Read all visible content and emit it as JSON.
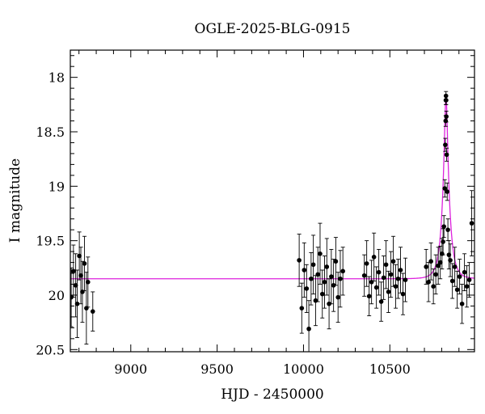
{
  "chart_data": {
    "type": "scatter",
    "title": "OGLE-2025-BLG-0915",
    "xlabel": "HJD - 2450000",
    "ylabel": "I magnitude",
    "xlim": [
      8650,
      10990
    ],
    "ylim": [
      20.52,
      17.75
    ],
    "y_inverted": true,
    "x_ticks": [
      9000,
      9500,
      10000,
      10500
    ],
    "y_ticks": [
      18,
      18.5,
      19,
      19.5,
      20,
      20.5
    ],
    "x_tick_labels": [
      "9000",
      "9500",
      "10000",
      "10500"
    ],
    "y_tick_labels": [
      "18",
      "18.5",
      "19",
      "19.5",
      "20",
      "20.5"
    ],
    "colors": {
      "points": "#000000",
      "model": "#dd22dd",
      "frame": "#000000"
    },
    "baseline_mag": 19.85,
    "event": {
      "t0": 10825,
      "peak_mag": 18.17,
      "t_eff": 3.2
    },
    "series": [
      {
        "marker": "filled-circle",
        "errorbars": true,
        "segments": [
          {
            "x": [
              8655,
              8668,
              8681,
              8690,
              8702,
              8711,
              8720,
              8732,
              8743,
              8752,
              8780
            ],
            "y": [
              20.02,
              19.78,
              19.91,
              20.08,
              19.64,
              19.82,
              19.97,
              19.71,
              20.12,
              19.88,
              20.15
            ],
            "err": [
              0.27,
              0.24,
              0.29,
              0.31,
              0.22,
              0.26,
              0.28,
              0.25,
              0.33,
              0.23,
              0.18
            ]
          },
          {
            "x": [
              9975,
              9990,
              10004,
              10018,
              10031,
              10044,
              10057,
              10070,
              10083,
              10096,
              10109,
              10122,
              10135,
              10148,
              10161,
              10174,
              10187,
              10200,
              10213,
              10228
            ],
            "y": [
              19.68,
              20.12,
              19.77,
              19.94,
              20.31,
              19.85,
              19.72,
              20.05,
              19.81,
              19.62,
              19.99,
              19.88,
              19.74,
              20.08,
              19.83,
              19.91,
              19.69,
              20.02,
              19.85,
              19.78
            ],
            "err": [
              0.24,
              0.23,
              0.25,
              0.22,
              0.26,
              0.24,
              0.27,
              0.23,
              0.25,
              0.28,
              0.22,
              0.24,
              0.26,
              0.23,
              0.25,
              0.24,
              0.22,
              0.23,
              0.26,
              0.22
            ]
          },
          {
            "x": [
              10352,
              10366,
              10380,
              10394,
              10408,
              10422,
              10436,
              10450,
              10464,
              10478,
              10492,
              10506,
              10520,
              10534,
              10548,
              10562,
              10576,
              10590
            ],
            "y": [
              19.82,
              19.71,
              20.01,
              19.88,
              19.65,
              19.93,
              19.79,
              20.06,
              19.84,
              19.72,
              19.97,
              19.81,
              19.69,
              19.92,
              19.85,
              19.77,
              19.99,
              19.86
            ],
            "err": [
              0.19,
              0.21,
              0.18,
              0.2,
              0.22,
              0.19,
              0.21,
              0.18,
              0.2,
              0.22,
              0.19,
              0.21,
              0.23,
              0.2,
              0.18,
              0.21,
              0.19,
              0.2
            ]
          },
          {
            "x": [
              10710,
              10724,
              10738,
              10752,
              10766,
              10780,
              10792,
              10802,
              10808,
              10813,
              10818,
              10821,
              10823,
              10824,
              10825,
              10826,
              10827,
              10829,
              10832,
              10836,
              10842,
              10850,
              10862,
              10876,
              10890,
              10904,
              10918,
              10932,
              10946,
              10960,
              10974
            ],
            "y": [
              19.74,
              19.88,
              19.69,
              19.92,
              19.81,
              19.73,
              19.7,
              19.62,
              19.51,
              19.37,
              19.02,
              18.62,
              18.4,
              18.21,
              18.17,
              18.21,
              18.36,
              18.71,
              19.05,
              19.4,
              19.63,
              19.68,
              19.87,
              19.74,
              19.95,
              19.83,
              20.08,
              19.79,
              19.92,
              19.86,
              19.34
            ],
            "err": [
              0.16,
              0.18,
              0.17,
              0.16,
              0.18,
              0.17,
              0.15,
              0.14,
              0.12,
              0.1,
              0.08,
              0.06,
              0.05,
              0.04,
              0.04,
              0.04,
              0.05,
              0.06,
              0.08,
              0.1,
              0.13,
              0.15,
              0.16,
              0.18,
              0.17,
              0.16,
              0.18,
              0.17,
              0.19,
              0.16,
              0.3
            ]
          }
        ]
      }
    ]
  }
}
